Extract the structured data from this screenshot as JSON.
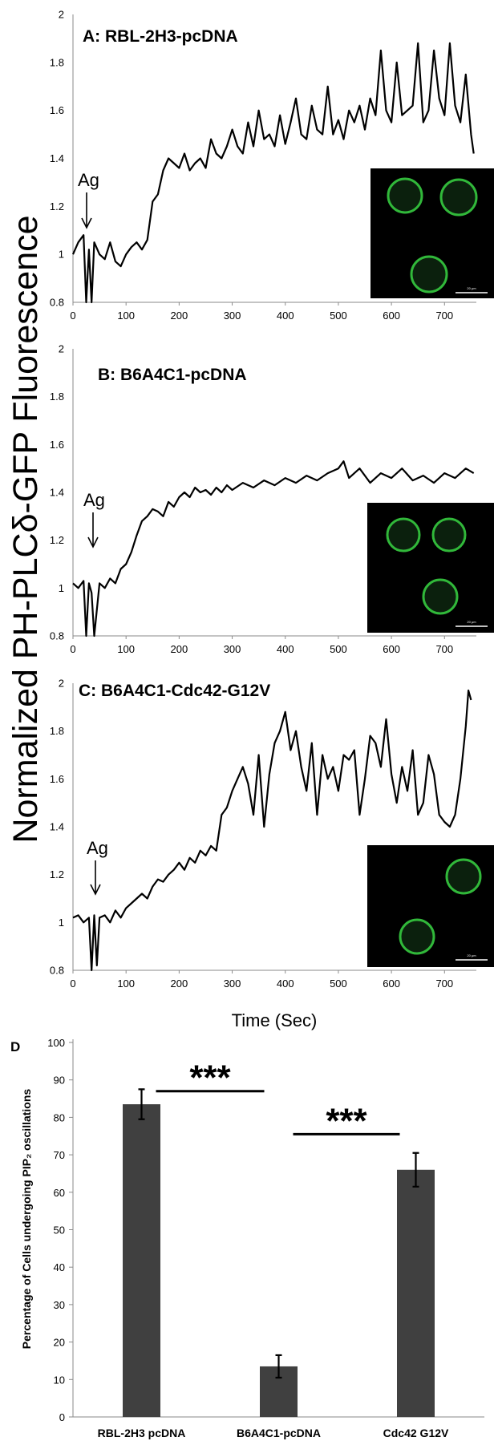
{
  "figure": {
    "shared_ylabel": "Normalized PH-PLCδ-GFP Fluorescence",
    "shared_xlabel": "Time (Sec)",
    "panel_d_letter": "D",
    "scale_bar_label": "20 μm"
  },
  "chart_data": [
    {
      "type": "line",
      "title": "A: RBL-2H3-pcDNA",
      "annotation": "Ag",
      "annotation_x": 25,
      "xlim": [
        0,
        760
      ],
      "ylim": [
        0.8,
        2
      ],
      "xticks": [
        0,
        100,
        200,
        300,
        400,
        500,
        600,
        700
      ],
      "yticks": [
        0.8,
        1,
        1.2,
        1.4,
        1.6,
        1.8,
        2
      ],
      "colors": {
        "line": "#000000",
        "inset_bg": "#000000",
        "cell_ring": "#31b83a"
      },
      "series": [
        {
          "x": [
            0,
            10,
            20,
            25,
            30,
            35,
            40,
            50,
            60,
            70,
            80,
            90,
            100,
            110,
            120,
            130,
            140,
            150,
            160,
            170,
            180,
            190,
            200,
            210,
            220,
            230,
            240,
            250,
            260,
            270,
            280,
            290,
            300,
            310,
            320,
            330,
            340,
            350,
            360,
            370,
            380,
            390,
            400,
            410,
            420,
            430,
            440,
            450,
            460,
            470,
            480,
            490,
            500,
            510,
            520,
            530,
            540,
            550,
            560,
            570,
            580,
            590,
            600,
            610,
            620,
            630,
            640,
            650,
            660,
            670,
            680,
            690,
            700,
            710,
            720,
            730,
            740,
            750,
            755
          ],
          "y": [
            1.0,
            1.05,
            1.08,
            0.8,
            1.02,
            0.8,
            1.05,
            1.0,
            0.98,
            1.05,
            0.97,
            0.95,
            1.0,
            1.03,
            1.05,
            1.02,
            1.06,
            1.22,
            1.25,
            1.35,
            1.4,
            1.38,
            1.36,
            1.42,
            1.35,
            1.38,
            1.4,
            1.36,
            1.48,
            1.42,
            1.4,
            1.45,
            1.52,
            1.45,
            1.42,
            1.55,
            1.45,
            1.6,
            1.48,
            1.5,
            1.45,
            1.58,
            1.46,
            1.55,
            1.65,
            1.5,
            1.48,
            1.62,
            1.52,
            1.5,
            1.7,
            1.5,
            1.56,
            1.48,
            1.6,
            1.55,
            1.62,
            1.52,
            1.65,
            1.58,
            1.85,
            1.6,
            1.55,
            1.8,
            1.58,
            1.6,
            1.62,
            1.88,
            1.55,
            1.6,
            1.85,
            1.65,
            1.58,
            1.88,
            1.62,
            1.55,
            1.75,
            1.5,
            1.42
          ]
        }
      ]
    },
    {
      "type": "line",
      "title": "B: B6A4C1-pcDNA",
      "annotation": "Ag",
      "annotation_x": 30,
      "xlim": [
        0,
        760
      ],
      "ylim": [
        0.8,
        2
      ],
      "xticks": [
        0,
        100,
        200,
        300,
        400,
        500,
        600,
        700
      ],
      "yticks": [
        0.8,
        1,
        1.2,
        1.4,
        1.6,
        1.8,
        2
      ],
      "colors": {
        "line": "#000000"
      },
      "series": [
        {
          "x": [
            0,
            10,
            20,
            25,
            30,
            35,
            40,
            50,
            60,
            70,
            80,
            90,
            100,
            110,
            120,
            130,
            140,
            150,
            160,
            170,
            180,
            190,
            200,
            210,
            220,
            230,
            240,
            250,
            260,
            270,
            280,
            290,
            300,
            320,
            340,
            360,
            380,
            400,
            420,
            440,
            460,
            480,
            500,
            510,
            520,
            540,
            560,
            580,
            600,
            620,
            640,
            660,
            680,
            700,
            720,
            740,
            755
          ],
          "y": [
            1.02,
            1.0,
            1.03,
            0.8,
            1.02,
            0.98,
            0.8,
            1.02,
            1.0,
            1.04,
            1.02,
            1.08,
            1.1,
            1.15,
            1.22,
            1.28,
            1.3,
            1.33,
            1.32,
            1.3,
            1.36,
            1.34,
            1.38,
            1.4,
            1.38,
            1.42,
            1.4,
            1.41,
            1.39,
            1.42,
            1.4,
            1.43,
            1.41,
            1.44,
            1.42,
            1.45,
            1.43,
            1.46,
            1.44,
            1.47,
            1.45,
            1.48,
            1.5,
            1.53,
            1.46,
            1.5,
            1.44,
            1.48,
            1.46,
            1.5,
            1.45,
            1.47,
            1.44,
            1.48,
            1.46,
            1.5,
            1.48
          ]
        }
      ]
    },
    {
      "type": "line",
      "title": "C: B6A4C1-Cdc42-G12V",
      "annotation": "Ag",
      "annotation_x": 35,
      "xlim": [
        0,
        760
      ],
      "ylim": [
        0.8,
        2
      ],
      "xticks": [
        0,
        100,
        200,
        300,
        400,
        500,
        600,
        700
      ],
      "yticks": [
        0.8,
        1,
        1.2,
        1.4,
        1.6,
        1.8,
        2
      ],
      "colors": {
        "line": "#000000"
      },
      "series": [
        {
          "x": [
            0,
            10,
            20,
            30,
            35,
            40,
            45,
            50,
            60,
            70,
            80,
            90,
            100,
            110,
            120,
            130,
            140,
            150,
            160,
            170,
            180,
            190,
            200,
            210,
            220,
            230,
            240,
            250,
            260,
            270,
            280,
            290,
            300,
            310,
            320,
            330,
            340,
            350,
            360,
            370,
            380,
            390,
            400,
            410,
            420,
            430,
            440,
            450,
            460,
            470,
            480,
            490,
            500,
            510,
            520,
            530,
            540,
            550,
            560,
            570,
            580,
            590,
            600,
            610,
            620,
            630,
            640,
            650,
            660,
            670,
            680,
            690,
            700,
            710,
            720,
            730,
            740,
            745,
            750
          ],
          "y": [
            1.02,
            1.03,
            1.0,
            1.02,
            0.8,
            1.03,
            0.82,
            1.02,
            1.03,
            1.0,
            1.05,
            1.02,
            1.06,
            1.08,
            1.1,
            1.12,
            1.1,
            1.15,
            1.18,
            1.17,
            1.2,
            1.22,
            1.25,
            1.22,
            1.27,
            1.25,
            1.3,
            1.28,
            1.32,
            1.3,
            1.45,
            1.48,
            1.55,
            1.6,
            1.65,
            1.58,
            1.45,
            1.7,
            1.4,
            1.62,
            1.75,
            1.8,
            1.88,
            1.72,
            1.8,
            1.65,
            1.55,
            1.75,
            1.45,
            1.7,
            1.6,
            1.65,
            1.55,
            1.7,
            1.68,
            1.72,
            1.45,
            1.6,
            1.78,
            1.75,
            1.65,
            1.85,
            1.62,
            1.5,
            1.65,
            1.55,
            1.72,
            1.45,
            1.5,
            1.7,
            1.62,
            1.45,
            1.42,
            1.4,
            1.45,
            1.6,
            1.82,
            1.97,
            1.93
          ]
        }
      ]
    },
    {
      "type": "bar",
      "ylabel": "Percentage of Cells undergoing PIP₂ oscillations",
      "categories": [
        "RBL-2H3 pcDNA",
        "B6A4C1-pcDNA",
        "Cdc42 G12V"
      ],
      "values": [
        83.5,
        13.5,
        66
      ],
      "errors": [
        4,
        3,
        4.5
      ],
      "ylim": [
        0,
        100
      ],
      "yticks": [
        0,
        10,
        20,
        30,
        40,
        50,
        60,
        70,
        80,
        90,
        100
      ],
      "significance": [
        {
          "between": [
            0,
            1
          ],
          "label": "***"
        },
        {
          "between": [
            1,
            2
          ],
          "label": "***"
        }
      ],
      "colors": {
        "bar": "#404040"
      }
    }
  ]
}
